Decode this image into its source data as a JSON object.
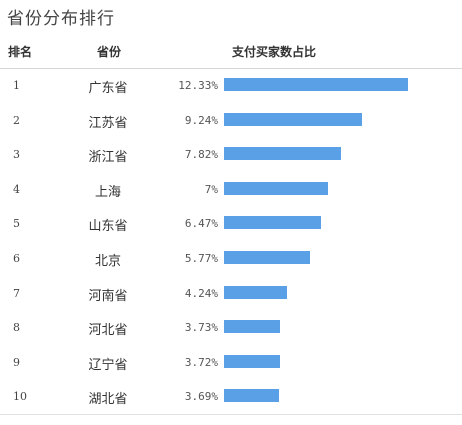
{
  "title": "省份分布排行",
  "columns": {
    "rank": "排名",
    "province": "省份",
    "payment": "支付买家数占比"
  },
  "colors": {
    "bar": "#5aa0e6"
  },
  "chart_data": {
    "type": "bar",
    "orientation": "horizontal",
    "title": "省份分布排行",
    "categories": [
      "广东省",
      "江苏省",
      "浙江省",
      "上海",
      "山东省",
      "北京",
      "河南省",
      "河北省",
      "辽宁省",
      "湖北省"
    ],
    "ranks": [
      "1",
      "2",
      "3",
      "4",
      "5",
      "6",
      "7",
      "8",
      "9",
      "10"
    ],
    "values": [
      12.33,
      9.24,
      7.82,
      7,
      6.47,
      5.77,
      4.24,
      3.73,
      3.72,
      3.69
    ],
    "value_labels": [
      "12.33%",
      "9.24%",
      "7.82%",
      "7%",
      "6.47%",
      "5.77%",
      "4.24%",
      "3.73%",
      "3.72%",
      "3.69%"
    ],
    "ylabel": "支付买家数占比",
    "xlim": [
      0,
      12.33
    ]
  }
}
